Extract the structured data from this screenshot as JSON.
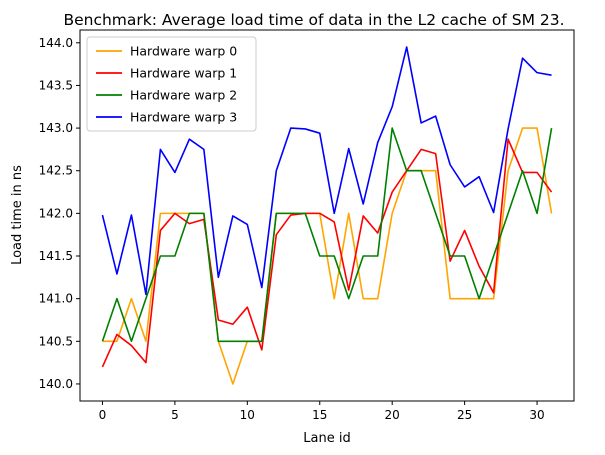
{
  "chart_data": {
    "type": "line",
    "title": "Benchmark: Average load time of data in the L2 cache of SM 23.",
    "xlabel": "Lane id",
    "ylabel": "Load time in ns",
    "xlim": [
      -1.55,
      32.55
    ],
    "ylim": [
      139.8,
      144.15
    ],
    "xticks": [
      0,
      5,
      10,
      15,
      20,
      25,
      30
    ],
    "yticks": [
      140.0,
      140.5,
      141.0,
      141.5,
      142.0,
      142.5,
      143.0,
      143.5,
      144.0
    ],
    "ytick_labels": [
      "140.0",
      "140.5",
      "141.0",
      "141.5",
      "142.0",
      "142.5",
      "143.0",
      "143.5",
      "144.0"
    ],
    "grid": false,
    "legend_position": "top-left",
    "x": [
      0,
      1,
      2,
      3,
      4,
      5,
      6,
      7,
      8,
      9,
      10,
      11,
      12,
      13,
      14,
      15,
      16,
      17,
      18,
      19,
      20,
      21,
      22,
      23,
      24,
      25,
      26,
      27,
      28,
      29,
      30,
      31
    ],
    "series": [
      {
        "name": "Hardware warp 0",
        "color": "#ffa500",
        "values": [
          140.5,
          140.5,
          141.0,
          140.5,
          142.0,
          142.0,
          142.0,
          142.0,
          140.5,
          140.0,
          140.5,
          140.5,
          142.0,
          142.0,
          142.0,
          142.0,
          141.0,
          142.0,
          141.0,
          141.0,
          142.0,
          142.5,
          142.5,
          142.5,
          141.0,
          141.0,
          141.0,
          141.0,
          142.5,
          143.0,
          143.0,
          142.0
        ]
      },
      {
        "name": "Hardware warp 1",
        "color": "#ff0000",
        "values": [
          140.2,
          140.58,
          140.45,
          140.25,
          141.8,
          142.0,
          141.88,
          141.93,
          140.75,
          140.7,
          140.9,
          140.4,
          141.75,
          141.98,
          142.0,
          142.0,
          141.9,
          141.1,
          141.97,
          141.77,
          142.25,
          142.5,
          142.75,
          142.7,
          141.44,
          141.8,
          141.38,
          141.07,
          142.87,
          142.48,
          142.48,
          142.25
        ]
      },
      {
        "name": "Hardware warp 2",
        "color": "#008000",
        "values": [
          140.5,
          141.0,
          140.5,
          141.0,
          141.5,
          141.5,
          142.0,
          142.0,
          140.5,
          140.5,
          140.5,
          140.5,
          142.0,
          142.0,
          142.0,
          141.5,
          141.5,
          141.0,
          141.5,
          141.5,
          143.0,
          142.5,
          142.5,
          142.0,
          141.5,
          141.5,
          141.0,
          141.5,
          142.0,
          142.5,
          142.0,
          143.0
        ]
      },
      {
        "name": "Hardware warp 3",
        "color": "#0000ff",
        "values": [
          141.98,
          141.29,
          141.98,
          141.05,
          142.75,
          142.48,
          142.87,
          142.75,
          141.25,
          141.97,
          141.87,
          141.13,
          142.5,
          143.0,
          142.99,
          142.94,
          142.0,
          142.76,
          142.11,
          142.83,
          143.25,
          143.95,
          143.06,
          143.14,
          142.57,
          142.31,
          142.43,
          142.01,
          142.99,
          143.82,
          143.65,
          143.62
        ]
      }
    ]
  }
}
